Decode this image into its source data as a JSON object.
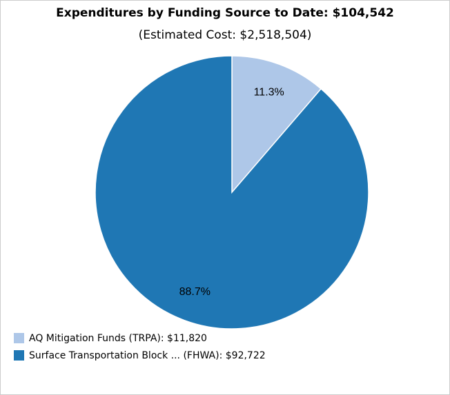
{
  "chart_data": {
    "type": "pie",
    "title": "Expenditures by Funding Source to Date: $104,542",
    "subtitle": "(Estimated Cost: $2,518,504)",
    "categories": [
      "AQ Mitigation Funds (TRPA): $11,820",
      "Surface Transportation Block ... (FHWA): $92,722"
    ],
    "values": [
      11.3,
      88.7
    ],
    "value_labels": [
      "11.3%",
      "88.7%"
    ],
    "colors": [
      "#aec7e8",
      "#1f77b4"
    ],
    "legend": "bottom-left"
  }
}
